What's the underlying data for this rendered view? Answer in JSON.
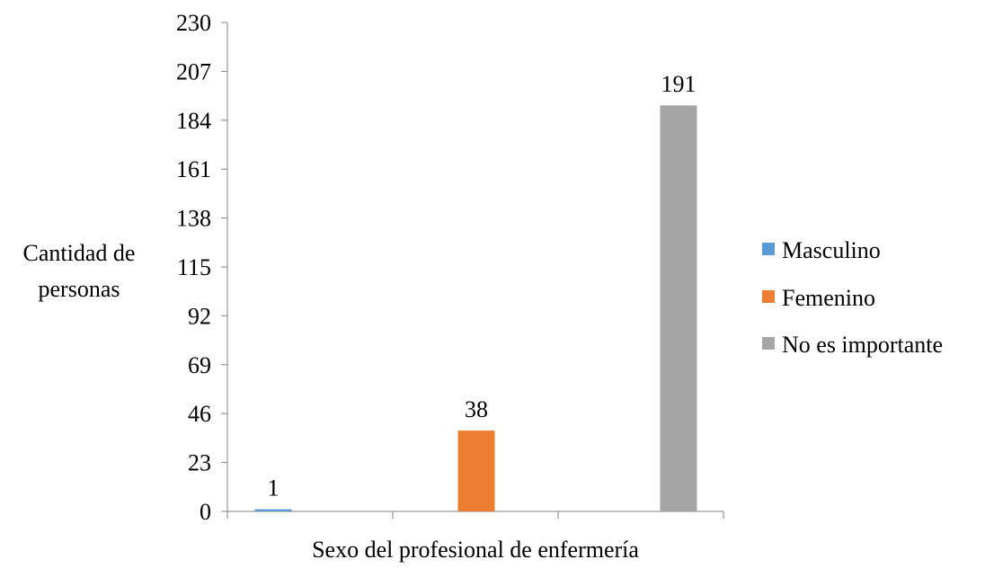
{
  "chart_data": {
    "type": "bar",
    "title": "",
    "xlabel": "Sexo del profesional de enfermería",
    "ylabel": "Cantidad de personas",
    "ylabel_lines": [
      "Cantidad de",
      "personas"
    ],
    "ylim": [
      0,
      230
    ],
    "yticks": [
      0,
      23,
      46,
      69,
      92,
      115,
      138,
      161,
      184,
      207,
      230
    ],
    "categories": [
      "Masculino",
      "Femenino",
      "No es importante"
    ],
    "series": [
      {
        "name": "Masculino",
        "color": "#5b9bd5",
        "values": [
          1,
          null,
          null
        ]
      },
      {
        "name": "Femenino",
        "color": "#ed7d31",
        "values": [
          null,
          38,
          null
        ]
      },
      {
        "name": "No es importante",
        "color": "#a5a5a5",
        "values": [
          null,
          null,
          191
        ]
      }
    ],
    "data_labels": true,
    "grid": false,
    "legend_position": "right"
  }
}
